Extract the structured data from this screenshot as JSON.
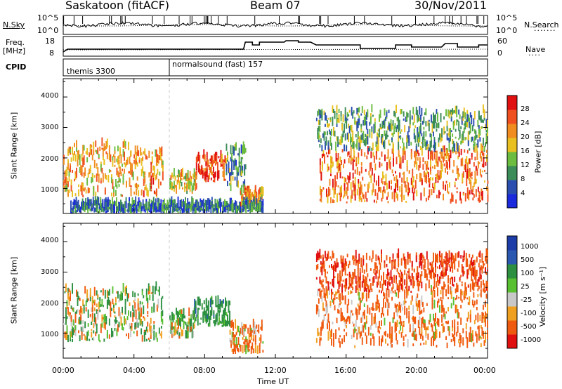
{
  "header": {
    "station": "Saskatoon (fitACF)",
    "beam": "Beam 07",
    "date": "30/Nov/2011"
  },
  "nsky_panel": {
    "label": "N.Sky",
    "left_ticks": [
      "10^5",
      "10^0"
    ],
    "right_ticks": [
      "10^5",
      "10^0"
    ],
    "right_label": "N.Search"
  },
  "freq_panel": {
    "label_line1": "Freq.",
    "label_line2": "[MHz]",
    "left_ticks": [
      "18",
      "8"
    ],
    "right_ticks": [
      "60",
      "0"
    ],
    "right_label": "Nave"
  },
  "cpid_panel": {
    "label": "CPID",
    "programs": [
      {
        "name": "themis 3300",
        "start_hour": 0
      },
      {
        "name": "normalsound (fast) 157",
        "start_hour": 6
      }
    ]
  },
  "x_axis": {
    "ticks": [
      "00:00",
      "04:00",
      "08:00",
      "12:00",
      "16:00",
      "20:00",
      "00:00"
    ],
    "label": "Time UT"
  },
  "power_panel": {
    "ylabel": "Slant Range [km]",
    "yticks": [
      "1000",
      "2000",
      "3000",
      "4000"
    ],
    "colorbar_label": "Power [dB]",
    "colorbar_ticks": [
      "4",
      "8",
      "12",
      "16",
      "20",
      "24",
      "28"
    ]
  },
  "velocity_panel": {
    "ylabel": "Slant Range [km]",
    "yticks": [
      "1000",
      "2000",
      "3000",
      "4000"
    ],
    "colorbar_label": "Velocity [m s⁻¹]",
    "colorbar_ticks": [
      "1000",
      "500",
      "100",
      "25",
      "-25",
      "-100",
      "-500",
      "-1000"
    ]
  },
  "chart_data": [
    {
      "type": "heatmap",
      "title": "Power",
      "xlabel": "Time UT",
      "ylabel": "Slant Range [km]",
      "xlim_hours": [
        0,
        24
      ],
      "ylim_km": [
        180,
        4600
      ],
      "colorbar": {
        "label": "Power [dB]",
        "range": [
          0,
          32
        ],
        "colors": [
          "#1a2adc",
          "#2a4eb0",
          "#3c8c5a",
          "#6cbc40",
          "#e8c020",
          "#f08c20",
          "#f05020",
          "#e01010"
        ]
      },
      "echo_regions": [
        {
          "hours": [
            0.0,
            3.8
          ],
          "range_km": [
            700,
            2400
          ],
          "mean_power_db": 20
        },
        {
          "hours": [
            3.8,
            5.6
          ],
          "range_km": [
            700,
            2200
          ],
          "mean_power_db": 22
        },
        {
          "hours": [
            6.0,
            7.5
          ],
          "range_km": [
            800,
            1400
          ],
          "mean_power_db": 18
        },
        {
          "hours": [
            7.5,
            9.2
          ],
          "range_km": [
            1200,
            2000
          ],
          "mean_power_db": 26
        },
        {
          "hours": [
            9.2,
            10.3
          ],
          "range_km": [
            900,
            2300
          ],
          "mean_power_db": 10
        },
        {
          "hours": [
            10.0,
            11.3
          ],
          "range_km": [
            300,
            900
          ],
          "mean_power_db": 22
        },
        {
          "hours": [
            0.4,
            11.3
          ],
          "range_km": [
            180,
            450
          ],
          "mean_power_db": 8
        },
        {
          "hours": [
            14.5,
            24.0
          ],
          "range_km": [
            500,
            2200
          ],
          "mean_power_db": 24
        },
        {
          "hours": [
            14.3,
            24.0
          ],
          "range_km": [
            2200,
            3500
          ],
          "mean_power_db": 12
        }
      ]
    },
    {
      "type": "heatmap",
      "title": "Velocity",
      "xlabel": "Time UT",
      "ylabel": "Slant Range [km]",
      "xlim_hours": [
        0,
        24
      ],
      "ylim_km": [
        180,
        4600
      ],
      "colorbar": {
        "label": "Velocity [m s⁻¹]",
        "range": [
          -1000,
          1000
        ],
        "colors": [
          "#e01010",
          "#f05a10",
          "#f0a020",
          "#c8c8c8",
          "#58c030",
          "#2c9040",
          "#2a58b0",
          "#1c3ca8"
        ]
      },
      "echo_regions": [
        {
          "hours": [
            0.0,
            5.6
          ],
          "range_km": [
            700,
            2400
          ],
          "mean_velocity": 50
        },
        {
          "hours": [
            6.0,
            7.4
          ],
          "range_km": [
            800,
            1600
          ],
          "mean_velocity": 80
        },
        {
          "hours": [
            7.4,
            9.4
          ],
          "range_km": [
            1200,
            2000
          ],
          "mean_velocity": 300
        },
        {
          "hours": [
            9.4,
            11.3
          ],
          "range_km": [
            300,
            1200
          ],
          "mean_velocity": -150
        },
        {
          "hours": [
            14.3,
            24.0
          ],
          "range_km": [
            500,
            2300
          ],
          "mean_velocity": -200
        },
        {
          "hours": [
            14.3,
            24.0
          ],
          "range_km": [
            2300,
            3500
          ],
          "mean_velocity": -400
        }
      ]
    }
  ]
}
